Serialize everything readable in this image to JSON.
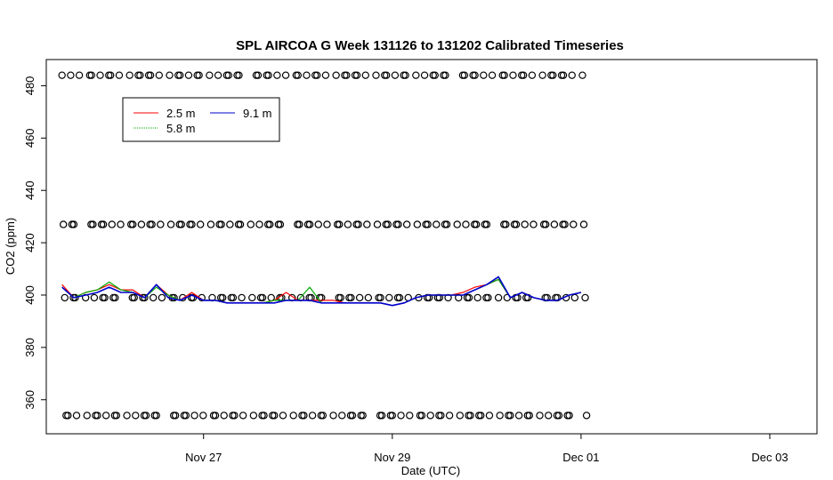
{
  "chart_data": {
    "type": "line",
    "title": "SPL AIRCOA G  Week 131126 to 131202  Calibrated Timeseries",
    "xlabel": "Date (UTC)",
    "ylabel": "CO2 (ppm)",
    "xlim": [
      "2013-11-25T08:00",
      "2013-12-03T12:00"
    ],
    "ylim": [
      347,
      490
    ],
    "x_ticks": [
      {
        "at": "2013-11-27T00:00",
        "label": "Nov 27"
      },
      {
        "at": "2013-11-29T00:00",
        "label": "Nov 29"
      },
      {
        "at": "2013-12-01T00:00",
        "label": "Dec 01"
      },
      {
        "at": "2013-12-03T00:00",
        "label": "Dec 03"
      }
    ],
    "y_ticks": [
      360,
      380,
      400,
      420,
      440,
      460,
      480
    ],
    "legend": {
      "position": "top-left",
      "entries": [
        {
          "name": "2.5 m",
          "color": "#ff0000"
        },
        {
          "name": "5.8 m",
          "color": "#00aa00"
        },
        {
          "name": "9.1 m",
          "color": "#0000cc"
        }
      ]
    },
    "reference_series": {
      "start": "2013-11-25T12:00",
      "end": "2013-12-01T00:00",
      "levels": [
        484,
        427,
        399,
        354
      ],
      "marker": "open-circle"
    },
    "series": [
      {
        "name": "2.5 m",
        "color": "#ff0000",
        "x": [
          "2013-11-25T12:00",
          "2013-11-25T15:00",
          "2013-11-25T18:00",
          "2013-11-25T21:00",
          "2013-11-26T00:00",
          "2013-11-26T03:00",
          "2013-11-26T06:00",
          "2013-11-26T09:00",
          "2013-11-26T12:00",
          "2013-11-26T15:00",
          "2013-11-26T18:00",
          "2013-11-26T21:00",
          "2013-11-27T00:00",
          "2013-11-27T03:00",
          "2013-11-27T06:00",
          "2013-11-27T09:00",
          "2013-11-27T12:00",
          "2013-11-27T15:00",
          "2013-11-27T18:00",
          "2013-11-27T21:00",
          "2013-11-28T00:00",
          "2013-11-28T03:00",
          "2013-11-28T06:00",
          "2013-11-28T09:00",
          "2013-11-28T12:00",
          "2013-11-28T15:00",
          "2013-11-28T18:00",
          "2013-11-28T21:00",
          "2013-11-29T00:00",
          "2013-11-29T03:00",
          "2013-11-29T06:00",
          "2013-11-29T09:00",
          "2013-11-29T12:00",
          "2013-11-29T15:00",
          "2013-11-29T18:00",
          "2013-11-29T21:00",
          "2013-11-30T00:00",
          "2013-11-30T03:00",
          "2013-11-30T06:00",
          "2013-11-30T09:00",
          "2013-11-30T12:00",
          "2013-11-30T15:00",
          "2013-11-30T18:00",
          "2013-11-30T21:00",
          "2013-12-01T00:00"
        ],
        "values": [
          404,
          399,
          401,
          402,
          404,
          402,
          402,
          399,
          404,
          400,
          398,
          401,
          398,
          398,
          397,
          397,
          397,
          397,
          398,
          401,
          398,
          398,
          398,
          398,
          397,
          397,
          397,
          397,
          396,
          397,
          399,
          400,
          400,
          400,
          401,
          403,
          404,
          406,
          399,
          401,
          399,
          398,
          398,
          400,
          401
        ]
      },
      {
        "name": "5.8 m",
        "color": "#00aa00",
        "x": [
          "2013-11-25T12:00",
          "2013-11-25T15:00",
          "2013-11-25T18:00",
          "2013-11-25T21:00",
          "2013-11-26T00:00",
          "2013-11-26T03:00",
          "2013-11-26T06:00",
          "2013-11-26T09:00",
          "2013-11-26T12:00",
          "2013-11-26T15:00",
          "2013-11-26T18:00",
          "2013-11-26T21:00",
          "2013-11-27T00:00",
          "2013-11-27T03:00",
          "2013-11-27T06:00",
          "2013-11-27T09:00",
          "2013-11-27T12:00",
          "2013-11-27T15:00",
          "2013-11-27T18:00",
          "2013-11-27T21:00",
          "2013-11-28T00:00",
          "2013-11-28T03:00",
          "2013-11-28T06:00",
          "2013-11-28T09:00",
          "2013-11-28T12:00",
          "2013-11-28T15:00",
          "2013-11-28T18:00",
          "2013-11-28T21:00",
          "2013-11-29T00:00",
          "2013-11-29T03:00",
          "2013-11-29T06:00",
          "2013-11-29T09:00",
          "2013-11-29T12:00",
          "2013-11-29T15:00",
          "2013-11-29T18:00",
          "2013-11-29T21:00",
          "2013-11-30T00:00",
          "2013-11-30T03:00",
          "2013-11-30T06:00",
          "2013-11-30T09:00",
          "2013-11-30T12:00",
          "2013-11-30T15:00",
          "2013-11-30T18:00",
          "2013-11-30T21:00",
          "2013-12-01T00:00"
        ],
        "values": [
          403,
          399,
          401,
          402,
          405,
          402,
          401,
          399,
          403,
          400,
          398,
          400,
          398,
          398,
          397,
          397,
          397,
          397,
          398,
          398,
          398,
          403,
          397,
          397,
          397,
          397,
          397,
          397,
          396,
          397,
          399,
          400,
          400,
          400,
          400,
          402,
          404,
          406,
          399,
          401,
          399,
          398,
          398,
          400,
          401
        ]
      },
      {
        "name": "9.1 m",
        "color": "#0000cc",
        "x": [
          "2013-11-25T12:00",
          "2013-11-25T15:00",
          "2013-11-25T18:00",
          "2013-11-25T21:00",
          "2013-11-26T00:00",
          "2013-11-26T03:00",
          "2013-11-26T06:00",
          "2013-11-26T09:00",
          "2013-11-26T12:00",
          "2013-11-26T15:00",
          "2013-11-26T18:00",
          "2013-11-26T21:00",
          "2013-11-27T00:00",
          "2013-11-27T03:00",
          "2013-11-27T06:00",
          "2013-11-27T09:00",
          "2013-11-27T12:00",
          "2013-11-27T15:00",
          "2013-11-27T18:00",
          "2013-11-27T21:00",
          "2013-11-28T00:00",
          "2013-11-28T03:00",
          "2013-11-28T06:00",
          "2013-11-28T09:00",
          "2013-11-28T12:00",
          "2013-11-28T15:00",
          "2013-11-28T18:00",
          "2013-11-28T21:00",
          "2013-11-29T00:00",
          "2013-11-29T03:00",
          "2013-11-29T06:00",
          "2013-11-29T09:00",
          "2013-11-29T12:00",
          "2013-11-29T15:00",
          "2013-11-29T18:00",
          "2013-11-29T21:00",
          "2013-11-30T00:00",
          "2013-11-30T03:00",
          "2013-11-30T06:00",
          "2013-11-30T09:00",
          "2013-11-30T12:00",
          "2013-11-30T15:00",
          "2013-11-30T18:00",
          "2013-11-30T21:00",
          "2013-12-01T00:00"
        ],
        "values": [
          403,
          399,
          400,
          401,
          403,
          401,
          401,
          399,
          404,
          399,
          398,
          400,
          398,
          398,
          397,
          397,
          397,
          397,
          397,
          398,
          398,
          398,
          397,
          397,
          397,
          397,
          397,
          397,
          396,
          397,
          399,
          400,
          400,
          400,
          400,
          402,
          404,
          407,
          399,
          401,
          399,
          398,
          398,
          400,
          401
        ]
      }
    ]
  }
}
